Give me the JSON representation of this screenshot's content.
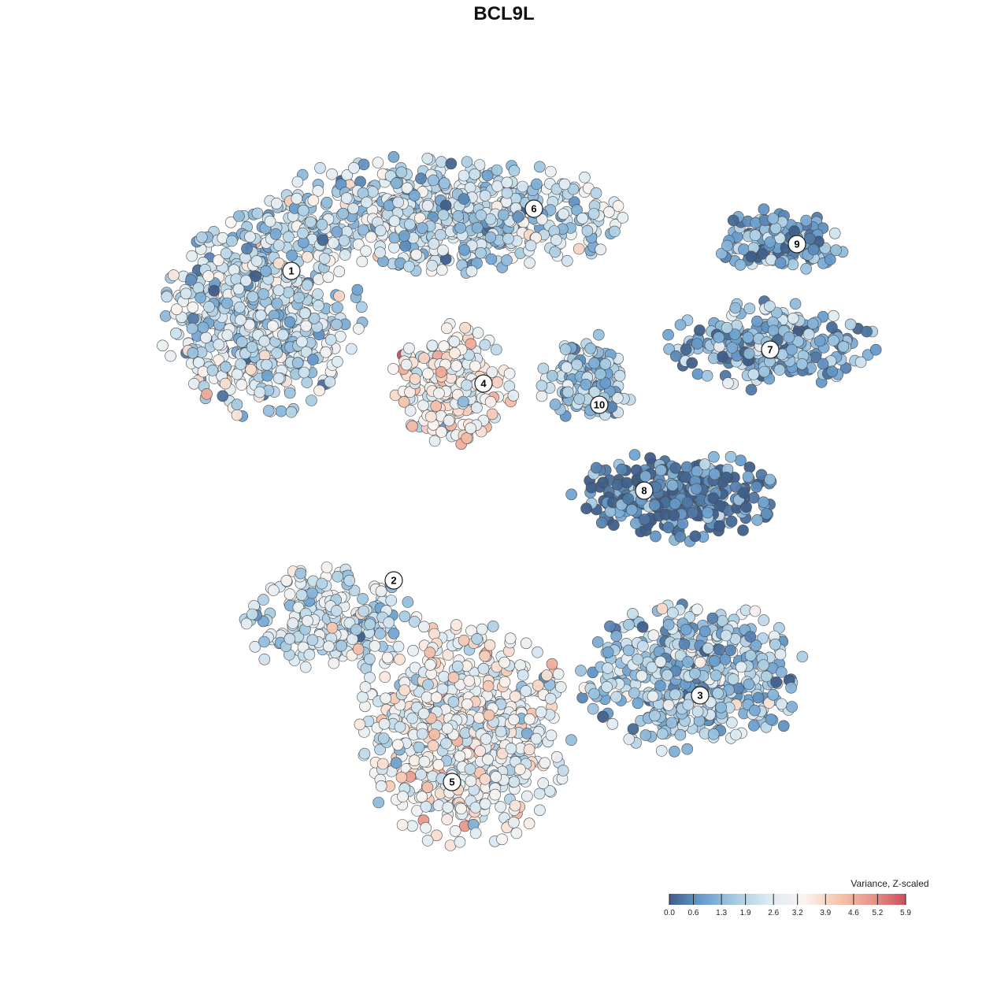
{
  "chart_data": {
    "type": "scatter",
    "title": "BCL9L",
    "color_scale": {
      "title": "Variance, Z-scaled",
      "ticks": [
        "0.0",
        "0.6",
        "1.3",
        "1.9",
        "2.6",
        "3.2",
        "3.9",
        "4.6",
        "5.2",
        "5.9"
      ],
      "min": 0.0,
      "max": 5.9,
      "colors": [
        "#3f5f8a",
        "#6a9fcf",
        "#a9cde3",
        "#deebf3",
        "#fbf4f0",
        "#f6c5ae",
        "#e8958a",
        "#c9505e"
      ]
    },
    "clusters": [
      {
        "label": "1",
        "mean_value": 2.1
      },
      {
        "label": "2",
        "mean_value": 2.4
      },
      {
        "label": "3",
        "mean_value": 1.7
      },
      {
        "label": "4",
        "mean_value": 3.2
      },
      {
        "label": "5",
        "mean_value": 2.9
      },
      {
        "label": "6",
        "mean_value": 2.0
      },
      {
        "label": "7",
        "mean_value": 1.2
      },
      {
        "label": "8",
        "mean_value": 0.4
      },
      {
        "label": "9",
        "mean_value": 1.0
      },
      {
        "label": "10",
        "mean_value": 1.8
      }
    ]
  }
}
